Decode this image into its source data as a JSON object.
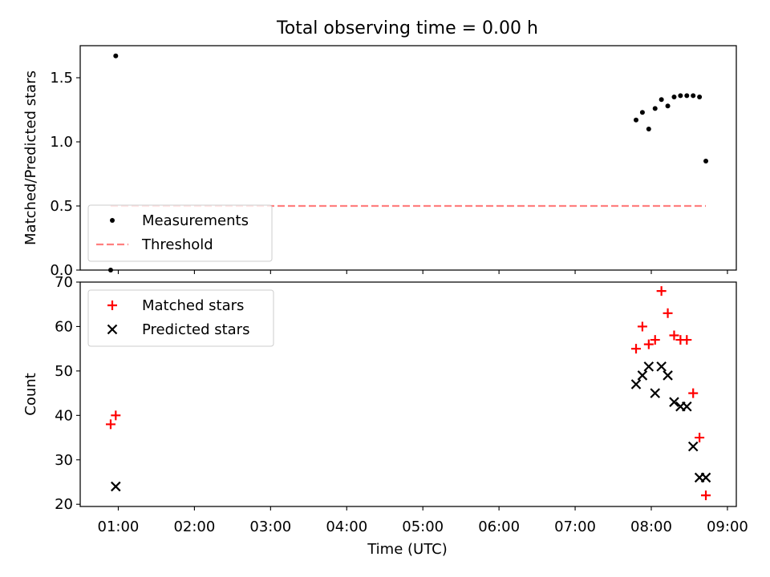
{
  "chart_data": {
    "title": "Total observing time = 0.00 h",
    "xlabel": "Time (UTC)",
    "xticks": [
      "01:00",
      "02:00",
      "03:00",
      "04:00",
      "05:00",
      "06:00",
      "07:00",
      "08:00",
      "09:00"
    ],
    "xlim": [
      "00:30",
      "09:07"
    ],
    "panels": [
      {
        "type": "scatter",
        "ylabel": "Matched/Predicted stars",
        "ylim": [
          0,
          1.75
        ],
        "yticks": [
          "0.0",
          "0.5",
          "1.0",
          "1.5"
        ],
        "legend_position": "lower-left",
        "series": [
          {
            "name": "Measurements",
            "marker": "dot",
            "color": "#000000",
            "x": [
              "00:54",
              "00:58",
              "07:48",
              "07:53",
              "07:58",
              "08:03",
              "08:08",
              "08:13",
              "08:18",
              "08:23",
              "08:28",
              "08:33",
              "08:38",
              "08:43"
            ],
            "y": [
              0.0,
              1.67,
              1.17,
              1.23,
              1.1,
              1.26,
              1.33,
              1.28,
              1.35,
              1.36,
              1.36,
              1.36,
              1.35,
              0.85
            ]
          }
        ],
        "lines": [
          {
            "name": "Threshold",
            "style": "dashed",
            "color": "#ff7f7f",
            "x": [
              "00:54",
              "08:43"
            ],
            "y": [
              0.5,
              0.5
            ]
          }
        ]
      },
      {
        "type": "scatter",
        "ylabel": "Count",
        "ylim": [
          19.5,
          70
        ],
        "yticks": [
          "20",
          "30",
          "40",
          "50",
          "60",
          "70"
        ],
        "legend_position": "upper-left",
        "series": [
          {
            "name": "Matched stars",
            "marker": "plus",
            "color": "#ff0000",
            "x": [
              "00:54",
              "00:58",
              "07:48",
              "07:53",
              "07:58",
              "08:03",
              "08:08",
              "08:13",
              "08:18",
              "08:23",
              "08:28",
              "08:33",
              "08:38",
              "08:43"
            ],
            "y": [
              38,
              40,
              55,
              60,
              56,
              57,
              68,
              63,
              58,
              57,
              57,
              45,
              35,
              22
            ]
          },
          {
            "name": "Predicted stars",
            "marker": "x",
            "color": "#000000",
            "x": [
              "00:58",
              "07:48",
              "07:53",
              "07:58",
              "08:03",
              "08:08",
              "08:13",
              "08:18",
              "08:23",
              "08:28",
              "08:33",
              "08:38",
              "08:43"
            ],
            "y": [
              24,
              47,
              49,
              51,
              45,
              51,
              49,
              43,
              42,
              42,
              33,
              26,
              26
            ]
          }
        ]
      }
    ]
  }
}
